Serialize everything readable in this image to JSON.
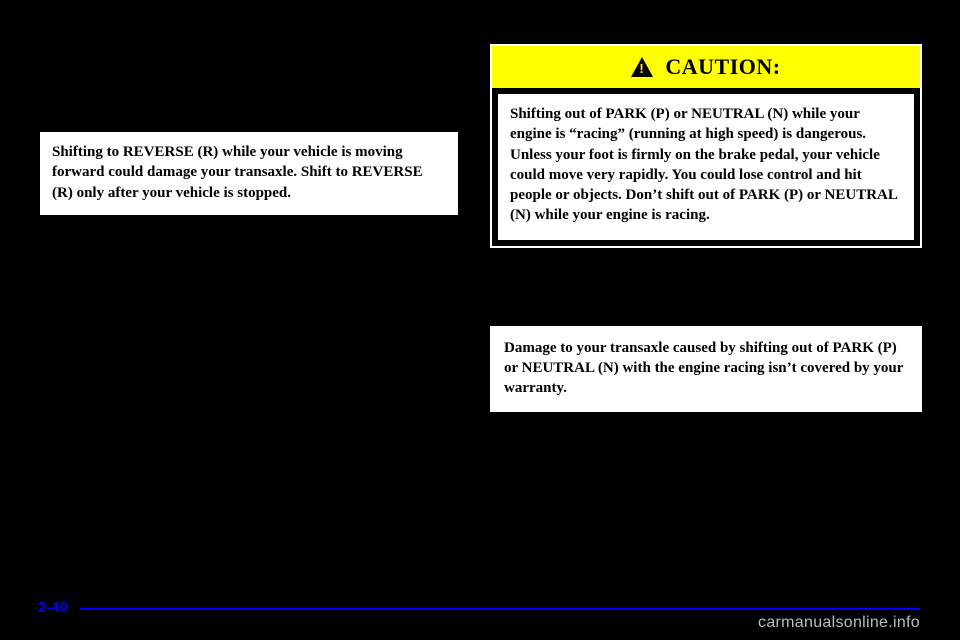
{
  "left": {
    "notice": "Shifting to REVERSE (R) while your vehicle is moving forward could damage your transaxle. Shift to REVERSE (R) only after your vehicle is stopped."
  },
  "right": {
    "caution_title": "CAUTION:",
    "caution_body": "Shifting out of PARK (P) or NEUTRAL (N) while your engine is “racing” (running at high speed) is dangerous. Unless your foot is firmly on the brake pedal, your vehicle could move very rapidly. You could lose control and hit people or objects. Don’t shift out of PARK (P) or NEUTRAL (N) while your engine is racing.",
    "notice2": "Damage to your transaxle caused by shifting out of PARK (P) or NEUTRAL (N) with the engine racing isn’t covered by your warranty."
  },
  "footer": {
    "page_num": "2-40",
    "watermark": "carmanualsonline.info"
  }
}
